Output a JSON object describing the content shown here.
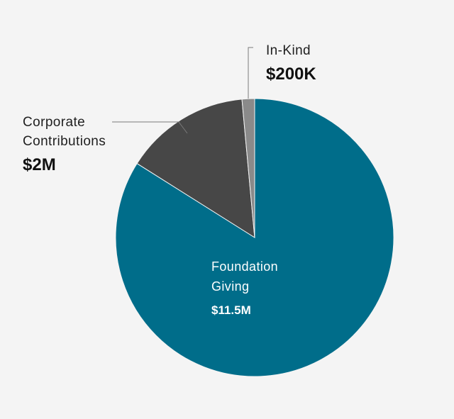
{
  "chart_data": {
    "type": "pie",
    "start_angle_deg": 0,
    "direction": "clockwise",
    "slices": [
      {
        "name_lines": [
          "Foundation",
          "Giving"
        ],
        "value": 11.5,
        "value_label": "$11.5M",
        "color": "#006d8a",
        "label_placement": "inside"
      },
      {
        "name_lines": [
          "Corporate",
          "Contributions"
        ],
        "value": 2.0,
        "value_label": "$2M",
        "color": "#474747",
        "label_placement": "outside-left"
      },
      {
        "name_lines": [
          "In-Kind"
        ],
        "value": 0.2,
        "value_label": "$200K",
        "color": "#8a8a8a",
        "label_placement": "outside-top"
      }
    ]
  },
  "colors": {
    "background": "#f4f4f4",
    "slice_separator": "#f4f4f4"
  }
}
